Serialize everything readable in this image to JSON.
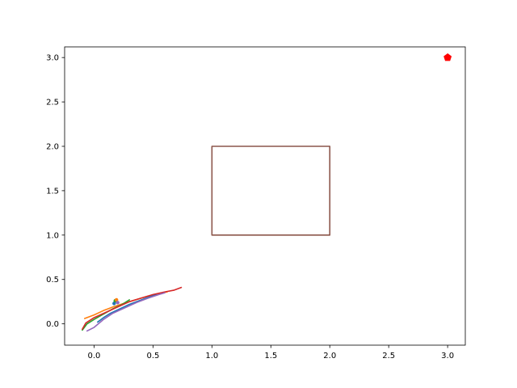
{
  "chart_data": {
    "type": "line",
    "title": "",
    "xlabel": "",
    "ylabel": "",
    "xlim": [
      -0.25,
      3.15
    ],
    "ylim": [
      -0.24,
      3.12
    ],
    "x_ticks": [
      0.0,
      0.5,
      1.0,
      1.5,
      2.0,
      2.5,
      3.0
    ],
    "x_tick_labels": [
      "0.0",
      "0.5",
      "1.0",
      "1.5",
      "2.0",
      "2.5",
      "3.0"
    ],
    "y_ticks": [
      0.0,
      0.5,
      1.0,
      1.5,
      2.0,
      2.5,
      3.0
    ],
    "y_tick_labels": [
      "0.0",
      "0.5",
      "1.0",
      "1.5",
      "2.0",
      "2.5",
      "3.0"
    ],
    "grid": false,
    "legend": "none",
    "series": [
      {
        "color": "#ff7f0e",
        "x": [
          -0.08,
          0.0,
          0.08,
          0.16,
          0.25,
          0.35,
          0.45,
          0.55,
          0.62
        ],
        "y": [
          0.06,
          0.1,
          0.15,
          0.19,
          0.23,
          0.27,
          0.31,
          0.34,
          0.36
        ]
      },
      {
        "color": "#1f77b4",
        "x": [
          0.03,
          0.08,
          0.14,
          0.22,
          0.3,
          0.38,
          0.46,
          0.53
        ],
        "y": [
          0.02,
          0.07,
          0.12,
          0.17,
          0.22,
          0.26,
          0.3,
          0.33
        ]
      },
      {
        "color": "#2ca02c",
        "x": [
          -0.1,
          -0.06,
          0.0,
          0.08,
          0.16,
          0.24,
          0.3
        ],
        "y": [
          -0.07,
          0.0,
          0.05,
          0.11,
          0.17,
          0.22,
          0.27
        ]
      },
      {
        "color": "#d62728",
        "x": [
          -0.1,
          -0.07,
          0.0,
          0.1,
          0.2,
          0.3,
          0.4,
          0.5,
          0.6,
          0.68,
          0.74
        ],
        "y": [
          -0.06,
          0.01,
          0.07,
          0.13,
          0.19,
          0.25,
          0.29,
          0.33,
          0.36,
          0.38,
          0.41
        ]
      },
      {
        "color": "#9467bd",
        "x": [
          -0.06,
          0.0,
          0.08,
          0.16,
          0.26,
          0.36,
          0.46,
          0.55,
          0.6
        ],
        "y": [
          -0.08,
          -0.04,
          0.05,
          0.12,
          0.18,
          0.24,
          0.29,
          0.33,
          0.35
        ]
      },
      {
        "color": "#8c564b",
        "x": [
          1.0,
          2.0,
          2.0,
          1.0,
          1.0
        ],
        "y": [
          1.0,
          1.0,
          2.0,
          2.0,
          1.0
        ]
      }
    ],
    "scatter": [
      {
        "color": "#1f77b4",
        "x": [
          0.17
        ],
        "y": [
          0.23
        ]
      },
      {
        "color": "#2ca02c",
        "x": [
          0.18
        ],
        "y": [
          0.26
        ]
      },
      {
        "color": "#ff7f0e",
        "x": [
          0.19
        ],
        "y": [
          0.27
        ]
      },
      {
        "color": "#9467bd",
        "x": [
          0.2
        ],
        "y": [
          0.24
        ]
      }
    ],
    "target_point": {
      "x": 3.0,
      "y": 3.0,
      "color": "#ff0000",
      "marker": "pentagon"
    }
  }
}
